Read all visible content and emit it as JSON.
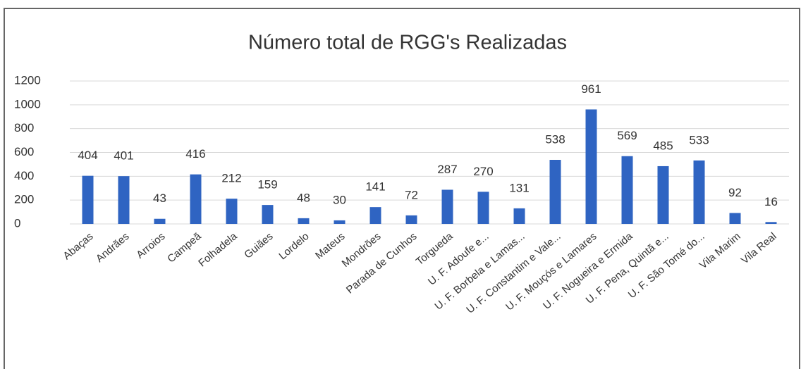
{
  "chart_data": {
    "type": "bar",
    "title": "Número total de RGG's Realizadas",
    "categories": [
      "Abaças",
      "Andrães",
      "Arroios",
      "Campeã",
      "Folhadela",
      "Guiães",
      "Lordelo",
      "Mateus",
      "Mondrões",
      "Parada de Cunhos",
      "Torgueda",
      "U. F. Adoufe e...",
      "U. F. Borbela e Lamas...",
      "U. F. Constantim e Vale...",
      "U. F. Mouçós e Lamares",
      "U. F. Nogueira e Ermida",
      "U. F. Pena, Quintã e...",
      "U. F. São Tomé do...",
      "Vila Marim",
      "Vila Real"
    ],
    "values": [
      404,
      401,
      43,
      416,
      212,
      159,
      48,
      30,
      141,
      72,
      287,
      270,
      131,
      538,
      961,
      569,
      485,
      533,
      92,
      16
    ],
    "color": "#2f64c2",
    "ylim": [
      0,
      1200
    ],
    "yticks": [
      0,
      200,
      400,
      600,
      800,
      1000,
      1200
    ],
    "grid": true
  }
}
